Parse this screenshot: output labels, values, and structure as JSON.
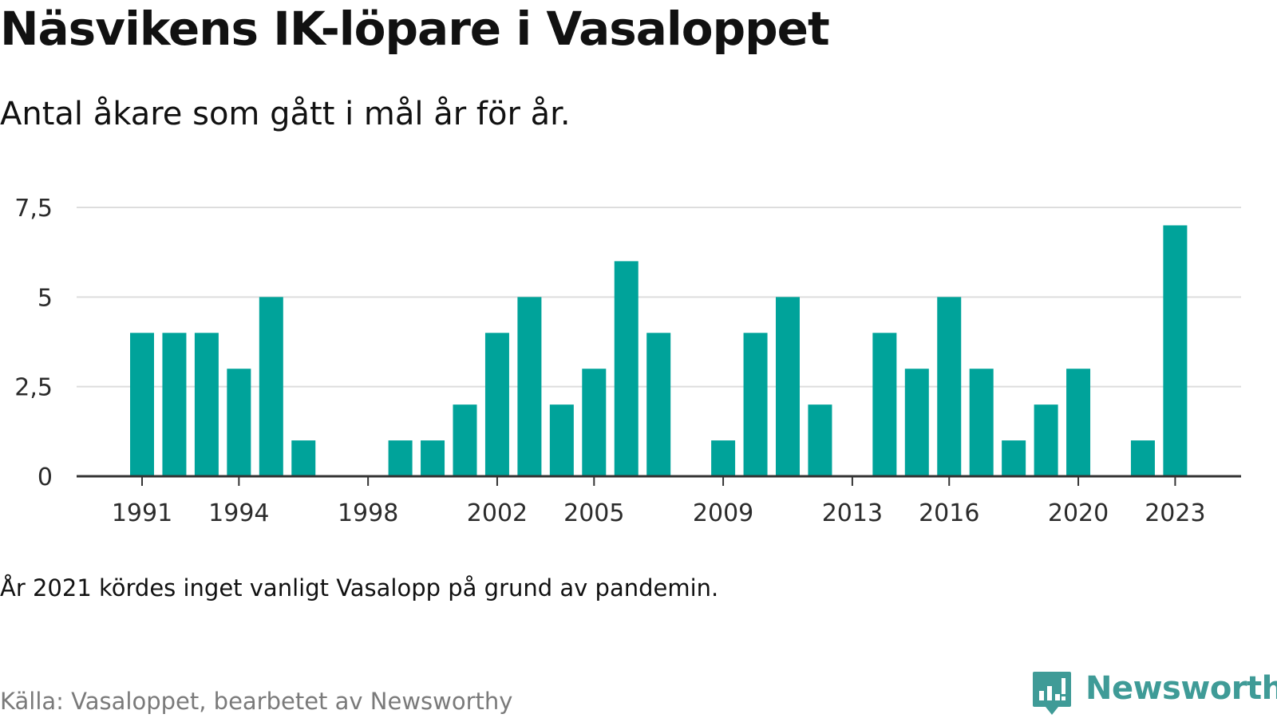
{
  "title": "Näsvikens IK-löpare i Vasaloppet",
  "subtitle": "Antal åkare som gått i mål år för år.",
  "note": "År 2021 kördes inget vanligt Vasalopp på grund av pandemin.",
  "source": "Källa: Vasaloppet, bearbetet av Newsworthy",
  "brand": {
    "name": "Newsworthy",
    "icon": "bar-chart-badge-icon"
  },
  "colors": {
    "bar": "#00a39a",
    "grid": "#dddddd",
    "axis": "#333333",
    "brand": "#3f9b97"
  },
  "chart_data": {
    "type": "bar",
    "title": "Näsvikens IK-löpare i Vasaloppet",
    "xlabel": "",
    "ylabel": "",
    "ylim": [
      0,
      7.5
    ],
    "yticks": [
      0,
      2.5,
      5,
      7.5
    ],
    "ytick_labels": [
      "0",
      "2,5",
      "5",
      "7,5"
    ],
    "xtick_labels": [
      "1991",
      "1994",
      "1998",
      "2002",
      "2005",
      "2009",
      "2013",
      "2016",
      "2020",
      "2023"
    ],
    "grid": true,
    "categories": [
      1991,
      1992,
      1993,
      1994,
      1995,
      1996,
      1997,
      1998,
      1999,
      2000,
      2001,
      2002,
      2003,
      2004,
      2005,
      2006,
      2007,
      2008,
      2009,
      2010,
      2011,
      2012,
      2013,
      2014,
      2015,
      2016,
      2017,
      2018,
      2019,
      2020,
      2021,
      2022,
      2023
    ],
    "values": [
      4,
      4,
      4,
      3,
      5,
      1,
      0,
      0,
      1,
      1,
      2,
      4,
      5,
      2,
      3,
      6,
      4,
      0,
      1,
      4,
      5,
      2,
      0,
      4,
      3,
      5,
      3,
      1,
      2,
      3,
      0,
      1,
      7
    ]
  }
}
